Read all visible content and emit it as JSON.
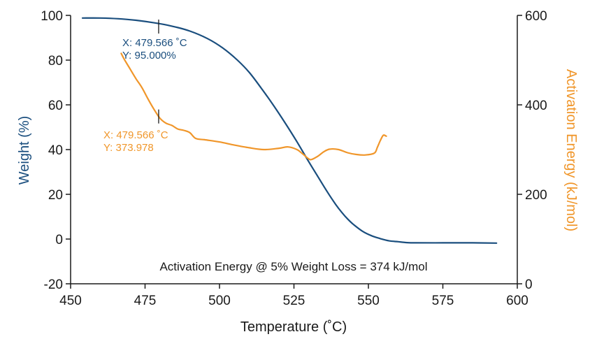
{
  "chart_data": {
    "type": "line",
    "xlabel": "Temperature (˚C)",
    "ylabel_left": "Weight (%)",
    "ylabel_right": "Activation Energy (kJ/mol)",
    "xlim": [
      450,
      600
    ],
    "ylim_left": [
      -20,
      100
    ],
    "ylim_right": [
      0,
      600
    ],
    "x_ticks": [
      "450",
      "475",
      "500",
      "525",
      "550",
      "575",
      "600"
    ],
    "y_left_ticks": [
      "-20",
      "0",
      "20",
      "40",
      "60",
      "80",
      "100"
    ],
    "y_right_ticks": [
      "0",
      "200",
      "400",
      "600"
    ],
    "colors": {
      "weight": "#1a4e7e",
      "activation": "#f0962a",
      "text": "#1a1a1a"
    },
    "series": [
      {
        "axis": "left",
        "color": "#1a4e7e",
        "x": [
          454,
          460,
          466,
          472,
          478,
          484,
          490,
          496,
          501,
          506,
          510,
          514,
          518,
          522,
          526,
          530,
          533,
          536,
          539,
          541,
          543,
          545,
          548,
          551,
          554,
          557,
          560,
          563,
          566,
          575,
          585,
          593
        ],
        "y": [
          98.8,
          98.8,
          98.5,
          97.8,
          96.7,
          95.2,
          93.0,
          89.6,
          85.5,
          80.0,
          74.5,
          67.5,
          60.0,
          52.0,
          43.5,
          34.5,
          28.0,
          21.5,
          15.5,
          12.0,
          9.0,
          6.5,
          3.5,
          1.5,
          0.2,
          -0.8,
          -1.2,
          -1.6,
          -1.7,
          -1.7,
          -1.7,
          -1.8
        ]
      },
      {
        "axis": "right",
        "color": "#f0962a",
        "x": [
          467,
          468,
          470,
          472,
          474,
          476,
          478,
          480,
          482,
          484,
          486,
          488,
          490,
          492,
          495,
          500,
          505,
          510,
          515,
          520,
          523,
          526,
          528,
          530,
          531,
          533,
          535,
          537,
          540,
          543,
          546,
          549,
          552,
          553,
          554,
          555,
          556
        ],
        "y": [
          515,
          502,
          480,
          458,
          438,
          413,
          390,
          370,
          359,
          354,
          346,
          343,
          338,
          325,
          322,
          317,
          310,
          304,
          300,
          303,
          306,
          300,
          290,
          279,
          278,
          285,
          295,
          301,
          300,
          293,
          289,
          288,
          292,
          305,
          320,
          332,
          330
        ]
      }
    ],
    "annotations": [
      {
        "x": 479.566,
        "axis": "left",
        "y": 95.0,
        "line1": "X: 479.566 ˚C",
        "line2": "Y: 95.000%",
        "color": "#1a4e7e"
      },
      {
        "x": 479.566,
        "axis": "right",
        "y": 373.978,
        "line1": "X: 479.566 ˚C",
        "line2": "Y: 373.978",
        "color": "#f0962a"
      }
    ],
    "note": "Activation Energy @ 5% Weight Loss = 374 kJ/mol"
  }
}
